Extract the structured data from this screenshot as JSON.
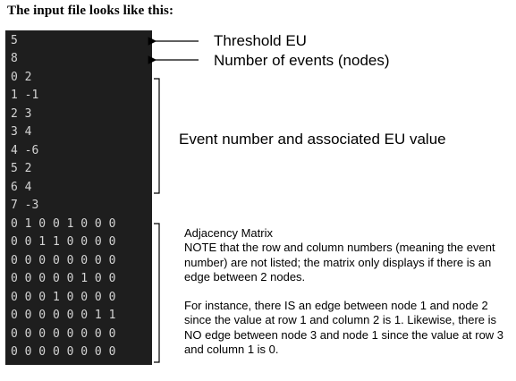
{
  "heading": "The input file looks like this:",
  "file_lines": [
    "5",
    "8",
    "0 2",
    "1 -1",
    "2 3",
    "3 4",
    "4 -6",
    "5 2",
    "6 4",
    "7 -3",
    "0 1 0 0 1 0 0 0",
    "0 0 1 1 0 0 0 0",
    "0 0 0 0 0 0 0 0",
    "0 0 0 0 0 1 0 0",
    "0 0 0 1 0 0 0 0",
    "0 0 0 0 0 0 1 1",
    "0 0 0 0 0 0 0 0",
    "0 0 0 0 0 0 0 0"
  ],
  "labels": {
    "threshold": "Threshold EU",
    "num_events": "Number of events (nodes)",
    "event_eu": "Event number and associated EU value",
    "adjacency_title": "Adjacency Matrix",
    "adjacency_note": "NOTE that the row and column numbers (meaning the event number) are not listed; the matrix only displays if there is an edge between 2 nodes.",
    "adjacency_example": "For instance, there IS an edge between node 1 and node 2 since the value at row 1 and column 2 is 1. Likewise, there is NO edge between node 3 and node 1 since the value at row 3 and column 1 is 0."
  }
}
